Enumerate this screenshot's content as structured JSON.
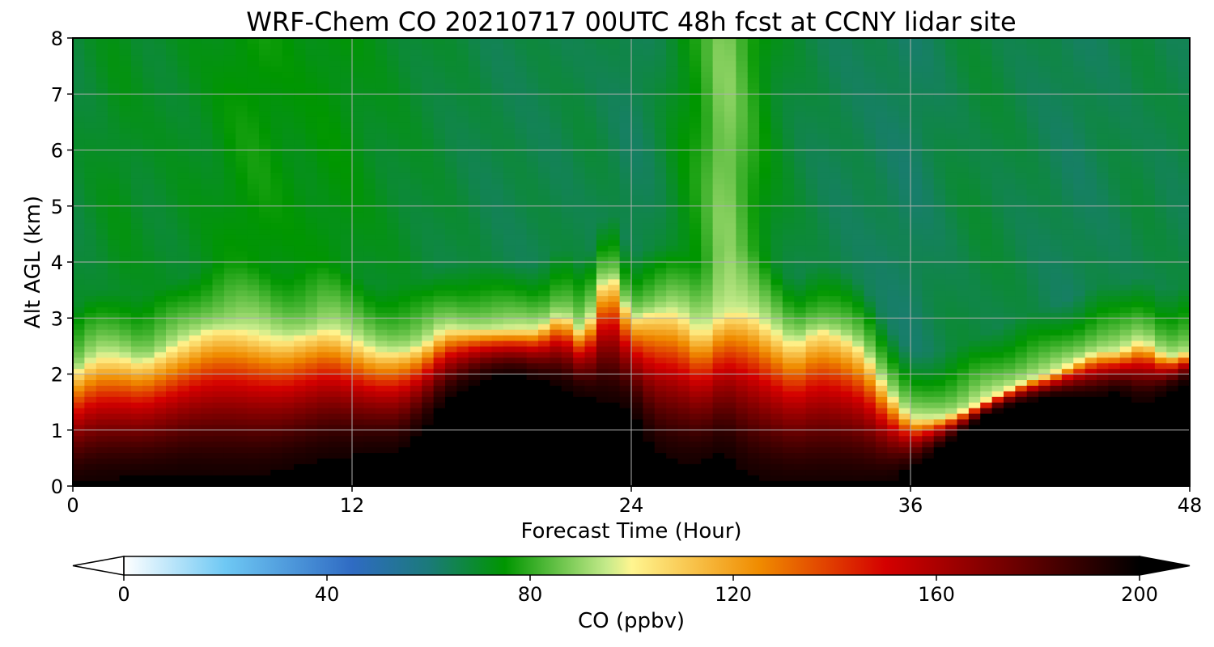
{
  "chart_data": {
    "type": "heatmap",
    "title": "WRF-Chem CO  20210717 00UTC 48h fcst at CCNY lidar site",
    "xlabel": "Forecast Time (Hour)",
    "ylabel": "Alt AGL (km)",
    "xlim": [
      0,
      48
    ],
    "ylim": [
      0,
      8
    ],
    "x_ticks": [
      "0",
      "12",
      "24",
      "36",
      "48"
    ],
    "y_ticks": [
      "0",
      "1",
      "2",
      "3",
      "4",
      "5",
      "6",
      "7",
      "8"
    ],
    "grid": true,
    "colorbar": {
      "label": "CO  (ppbv)",
      "range": [
        0,
        200
      ],
      "ticks": [
        "0",
        "40",
        "80",
        "120",
        "160",
        "200"
      ],
      "extend": "both",
      "stops": [
        {
          "value": 0,
          "color": "#ffffff"
        },
        {
          "value": 20,
          "color": "#6ec8f4"
        },
        {
          "value": 45,
          "color": "#2f6bc3"
        },
        {
          "value": 60,
          "color": "#1b7a7a"
        },
        {
          "value": 75,
          "color": "#009600"
        },
        {
          "value": 95,
          "color": "#c4ea8a"
        },
        {
          "value": 100,
          "color": "#fff590"
        },
        {
          "value": 125,
          "color": "#f08c00"
        },
        {
          "value": 150,
          "color": "#d40000"
        },
        {
          "value": 175,
          "color": "#6e0000"
        },
        {
          "value": 200,
          "color": "#000000"
        }
      ]
    },
    "x_hours": [
      0,
      1,
      2,
      3,
      4,
      5,
      6,
      7,
      8,
      9,
      10,
      11,
      12,
      13,
      14,
      15,
      16,
      17,
      18,
      19,
      20,
      21,
      22,
      23,
      24,
      25,
      26,
      27,
      28,
      29,
      30,
      31,
      32,
      33,
      34,
      35,
      36,
      37,
      38,
      39,
      40,
      41,
      42,
      43,
      44,
      45,
      46,
      47,
      48
    ],
    "boundary_layer_top_km": [
      2.0,
      2.3,
      2.3,
      2.2,
      2.4,
      2.6,
      2.8,
      2.8,
      2.7,
      2.6,
      2.7,
      2.8,
      2.6,
      2.4,
      2.4,
      2.5,
      2.8,
      2.8,
      2.8,
      2.8,
      2.8,
      3.1,
      2.7,
      3.9,
      3.0,
      3.1,
      3.1,
      2.7,
      3.1,
      3.1,
      2.8,
      2.5,
      2.8,
      2.7,
      2.4,
      1.7,
      1.2,
      1.2,
      1.3,
      1.5,
      1.7,
      1.9,
      2.0,
      2.2,
      2.4,
      2.4,
      2.6,
      2.3,
      2.4
    ],
    "black_core_top_km": [
      0.05,
      0.12,
      0.15,
      0.18,
      0.2,
      0.25,
      0.2,
      0.2,
      0.2,
      0.3,
      0.4,
      0.5,
      0.55,
      0.6,
      0.6,
      1.0,
      1.5,
      1.8,
      1.95,
      2.0,
      1.9,
      1.8,
      1.6,
      1.5,
      1.4,
      0.6,
      0.4,
      0.4,
      0.6,
      0.2,
      0.1,
      0.05,
      0.05,
      0.05,
      0.05,
      0.1,
      0.3,
      0.6,
      0.9,
      1.2,
      1.4,
      1.5,
      1.6,
      1.6,
      1.6,
      1.7,
      1.5,
      1.7,
      1.9
    ],
    "free_troposphere_ppbv": [
      68,
      70,
      72,
      70,
      70,
      71,
      72,
      75,
      76,
      74,
      73,
      74,
      73,
      71,
      70,
      69,
      68,
      67,
      66,
      66,
      66,
      66,
      67,
      66,
      64,
      66,
      72,
      78,
      90,
      80,
      72,
      68,
      66,
      65,
      65,
      64,
      63,
      65,
      67,
      68,
      67,
      66,
      65,
      64,
      65,
      66,
      67,
      66,
      66
    ]
  }
}
